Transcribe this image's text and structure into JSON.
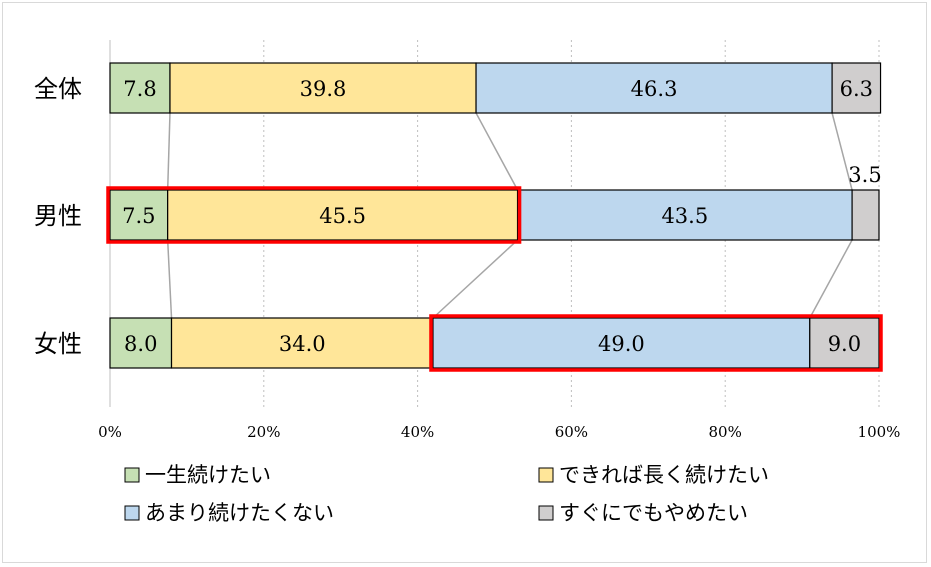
{
  "chart_data": {
    "type": "bar",
    "orientation": "horizontal",
    "stacked": true,
    "percent_stacked": true,
    "categories": [
      "全体",
      "男性",
      "女性"
    ],
    "series": [
      {
        "name": "一生続けたい",
        "values": [
          7.8,
          7.5,
          8.0
        ],
        "color": "#c6e0b4",
        "value_labels": [
          "7.8",
          "7.5",
          "8.0"
        ]
      },
      {
        "name": "できれば長く続けたい",
        "values": [
          39.8,
          45.5,
          34.0
        ],
        "color": "#ffe699",
        "value_labels": [
          "39.8",
          "45.5",
          "34.0"
        ]
      },
      {
        "name": "あまり続けたくない",
        "values": [
          46.3,
          43.5,
          49.0
        ],
        "color": "#bdd7ee",
        "value_labels": [
          "46.3",
          "43.5",
          "49.0"
        ]
      },
      {
        "name": "すぐにでもやめたい",
        "values": [
          6.3,
          3.5,
          9.0
        ],
        "color": "#d0cece",
        "value_labels": [
          "6.3",
          "3.5",
          "9.0"
        ]
      }
    ],
    "x_ticks": [
      "0%",
      "20%",
      "40%",
      "60%",
      "80%",
      "100%"
    ],
    "xlim": [
      0,
      100
    ],
    "grid": "vertical-dotted",
    "legend_position": "bottom",
    "series_connector_lines": true,
    "highlights": [
      {
        "category": "男性",
        "series": [
          "一生続けたい",
          "できれば長く続けたい"
        ],
        "color": "#ff0000"
      },
      {
        "category": "女性",
        "series": [
          "あまり続けたくない",
          "すぐにでもやめたい"
        ],
        "color": "#ff0000"
      }
    ]
  }
}
